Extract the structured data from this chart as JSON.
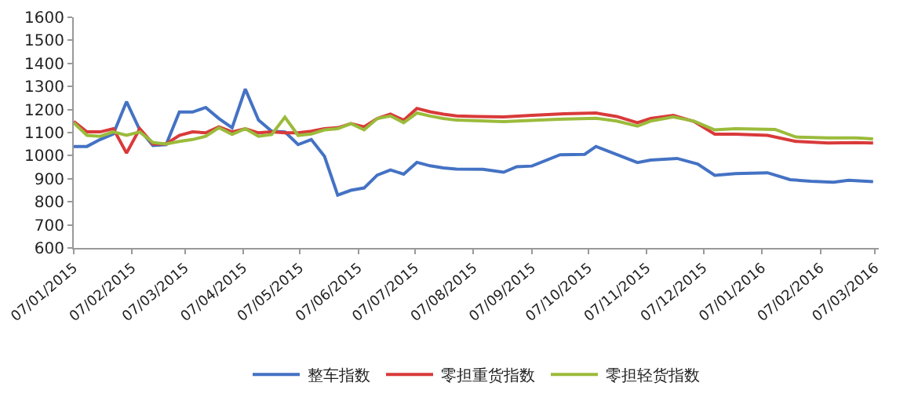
{
  "chart_data": {
    "type": "line",
    "legend": "bottom",
    "marker": "none",
    "line_style": "solid",
    "ylim": [
      600,
      1600
    ],
    "yticks": [
      600,
      700,
      800,
      900,
      1000,
      1100,
      1200,
      1300,
      1400,
      1500,
      1600
    ],
    "xlim": [
      "2015-01-07",
      "2016-03-09"
    ],
    "xticks": [
      {
        "value": "2015-01-07",
        "label": "07/01/2015"
      },
      {
        "value": "2015-02-07",
        "label": "07/02/2015"
      },
      {
        "value": "2015-03-07",
        "label": "07/03/2015"
      },
      {
        "value": "2015-04-07",
        "label": "07/04/2015"
      },
      {
        "value": "2015-05-07",
        "label": "07/05/2015"
      },
      {
        "value": "2015-06-07",
        "label": "07/06/2015"
      },
      {
        "value": "2015-07-07",
        "label": "07/07/2015"
      },
      {
        "value": "2015-08-07",
        "label": "07/08/2015"
      },
      {
        "value": "2015-09-07",
        "label": "07/09/2015"
      },
      {
        "value": "2015-10-07",
        "label": "07/10/2015"
      },
      {
        "value": "2015-11-07",
        "label": "07/11/2015"
      },
      {
        "value": "2015-12-07",
        "label": "07/12/2015"
      },
      {
        "value": "2016-01-07",
        "label": "07/01/2016"
      },
      {
        "value": "2016-02-07",
        "label": "07/02/2016"
      },
      {
        "value": "2016-03-07",
        "label": "07/03/2016"
      }
    ],
    "series": [
      {
        "name": "整车指数",
        "color": "#4472c4",
        "x": [
          "2015-01-07",
          "2015-01-14",
          "2015-01-21",
          "2015-01-28",
          "2015-02-04",
          "2015-02-11",
          "2015-02-18",
          "2015-02-25",
          "2015-03-04",
          "2015-03-11",
          "2015-03-18",
          "2015-03-25",
          "2015-04-01",
          "2015-04-08",
          "2015-04-15",
          "2015-04-22",
          "2015-04-29",
          "2015-05-06",
          "2015-05-13",
          "2015-05-20",
          "2015-05-27",
          "2015-06-03",
          "2015-06-10",
          "2015-06-17",
          "2015-06-24",
          "2015-07-01",
          "2015-07-08",
          "2015-07-15",
          "2015-07-22",
          "2015-07-29",
          "2015-08-12",
          "2015-08-23",
          "2015-08-30",
          "2015-09-07",
          "2015-09-22",
          "2015-10-05",
          "2015-10-11",
          "2015-11-02",
          "2015-11-09",
          "2015-11-23",
          "2015-12-04",
          "2015-12-13",
          "2015-12-24",
          "2016-01-10",
          "2016-01-22",
          "2016-02-02",
          "2016-02-14",
          "2016-02-22",
          "2016-03-06"
        ],
        "values": [
          1040,
          1040,
          1070,
          1094,
          1234,
          1112,
          1044,
          1048,
          1189,
          1189,
          1209,
          1161,
          1121,
          1289,
          1154,
          1106,
          1103,
          1048,
          1070,
          997,
          829,
          850,
          860,
          916,
          938,
          920,
          971,
          956,
          947,
          942,
          941,
          928,
          952,
          955,
          1004,
          1006,
          1040,
          970,
          981,
          988,
          964,
          915,
          922,
          926,
          896,
          889,
          885,
          893,
          887
        ]
      },
      {
        "name": "零担重货指数",
        "color": "#d93a3a",
        "x": [
          "2015-01-07",
          "2015-01-14",
          "2015-01-21",
          "2015-01-28",
          "2015-02-04",
          "2015-02-11",
          "2015-02-18",
          "2015-02-25",
          "2015-03-04",
          "2015-03-11",
          "2015-03-18",
          "2015-03-25",
          "2015-04-01",
          "2015-04-08",
          "2015-04-15",
          "2015-04-22",
          "2015-04-29",
          "2015-05-06",
          "2015-05-13",
          "2015-05-20",
          "2015-05-27",
          "2015-06-03",
          "2015-06-10",
          "2015-06-17",
          "2015-06-24",
          "2015-07-01",
          "2015-07-08",
          "2015-07-15",
          "2015-07-22",
          "2015-07-29",
          "2015-08-09",
          "2015-08-23",
          "2015-09-07",
          "2015-09-24",
          "2015-10-11",
          "2015-10-22",
          "2015-11-02",
          "2015-11-09",
          "2015-11-21",
          "2015-12-02",
          "2015-12-13",
          "2015-12-24",
          "2016-01-10",
          "2016-01-25",
          "2016-02-11",
          "2016-02-26",
          "2016-03-06"
        ],
        "values": [
          1148,
          1103,
          1103,
          1117,
          1011,
          1117,
          1051,
          1051,
          1088,
          1103,
          1099,
          1125,
          1103,
          1117,
          1099,
          1103,
          1099,
          1099,
          1106,
          1117,
          1121,
          1139,
          1125,
          1161,
          1180,
          1154,
          1205,
          1190,
          1180,
          1172,
          1170,
          1168,
          1175,
          1182,
          1185,
          1170,
          1143,
          1161,
          1175,
          1148,
          1093,
          1093,
          1088,
          1062,
          1055,
          1057,
          1055
        ]
      },
      {
        "name": "零担轻货指数",
        "color": "#9bbb3b",
        "x": [
          "2015-01-07",
          "2015-01-14",
          "2015-01-21",
          "2015-01-28",
          "2015-02-04",
          "2015-02-11",
          "2015-02-18",
          "2015-02-25",
          "2015-03-04",
          "2015-03-11",
          "2015-03-18",
          "2015-03-25",
          "2015-04-01",
          "2015-04-08",
          "2015-04-15",
          "2015-04-22",
          "2015-04-29",
          "2015-05-06",
          "2015-05-13",
          "2015-05-20",
          "2015-05-27",
          "2015-06-03",
          "2015-06-10",
          "2015-06-17",
          "2015-06-24",
          "2015-07-01",
          "2015-07-08",
          "2015-07-15",
          "2015-07-22",
          "2015-07-29",
          "2015-08-23",
          "2015-09-21",
          "2015-10-11",
          "2015-10-22",
          "2015-11-02",
          "2015-11-09",
          "2015-11-21",
          "2015-12-02",
          "2015-12-13",
          "2015-12-24",
          "2016-01-14",
          "2016-01-25",
          "2016-02-11",
          "2016-02-26",
          "2016-03-06"
        ],
        "values": [
          1143,
          1088,
          1084,
          1103,
          1088,
          1103,
          1057,
          1051,
          1062,
          1070,
          1084,
          1121,
          1092,
          1117,
          1084,
          1092,
          1167,
          1088,
          1094,
          1112,
          1117,
          1139,
          1112,
          1161,
          1172,
          1143,
          1185,
          1172,
          1161,
          1154,
          1148,
          1158,
          1162,
          1150,
          1128,
          1150,
          1168,
          1150,
          1112,
          1117,
          1114,
          1081,
          1077,
          1077,
          1073
        ]
      }
    ]
  }
}
